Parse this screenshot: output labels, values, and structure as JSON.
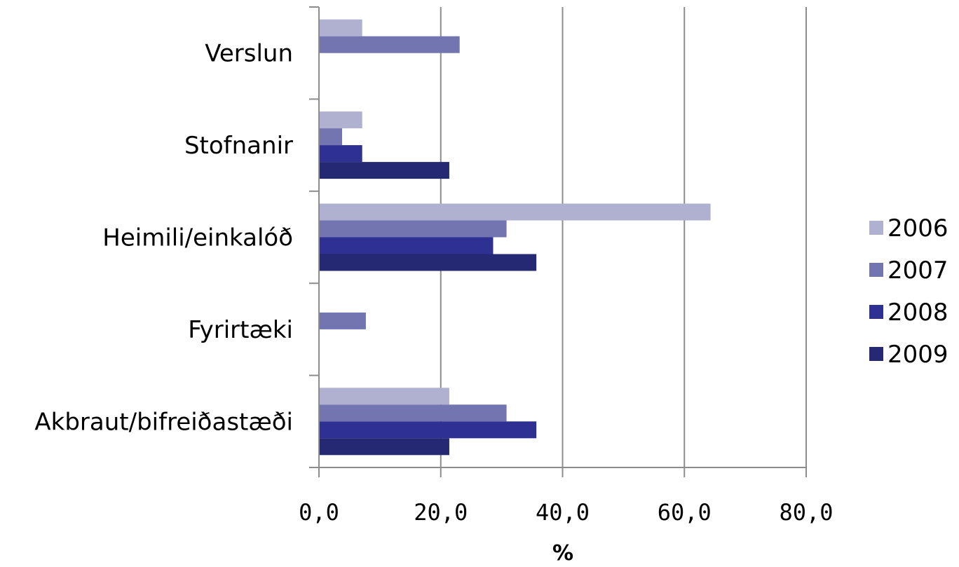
{
  "chart_data": {
    "type": "bar",
    "orientation": "horizontal",
    "title": "",
    "xlabel": "%",
    "ylabel": "",
    "xlim": [
      0,
      80
    ],
    "x_ticks": [
      0,
      20,
      40,
      60,
      80
    ],
    "x_tick_labels": [
      "0,0",
      "20,0",
      "40,0",
      "60,0",
      "80,0"
    ],
    "grid": "vertical",
    "legend_position": "right",
    "categories": [
      "Verslun",
      "Stofnanir",
      "Heimili/einkalóð",
      "Fyrirtæki",
      "Akbraut/bifreiðastæði"
    ],
    "series": [
      {
        "name": "2006",
        "color": "#b0b1d1",
        "values": [
          7.1,
          7.1,
          64.3,
          0,
          21.4
        ]
      },
      {
        "name": "2007",
        "color": "#7375b0",
        "values": [
          23.1,
          3.8,
          30.8,
          7.7,
          30.8
        ]
      },
      {
        "name": "2008",
        "color": "#2e3092",
        "values": [
          0,
          7.1,
          28.6,
          0,
          35.7
        ]
      },
      {
        "name": "2009",
        "color": "#252873",
        "values": [
          0,
          21.4,
          35.7,
          0,
          21.4
        ]
      }
    ]
  }
}
